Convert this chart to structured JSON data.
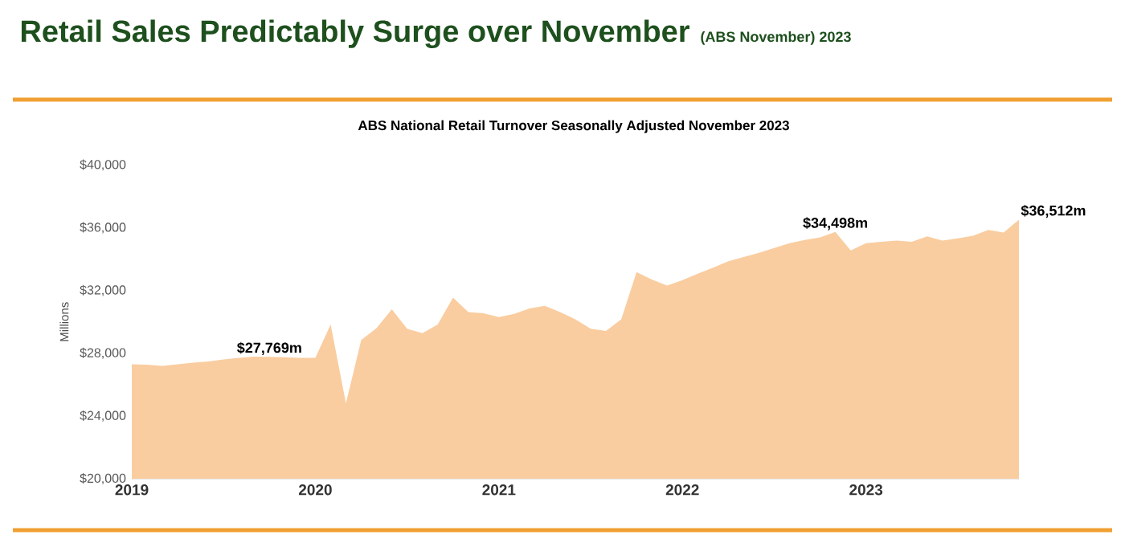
{
  "chart_data": {
    "type": "area",
    "title": "Retail Sales Predictably Surge over November",
    "subtitle": "ABS National Retail Turnover Seasonally Adjusted November 2023",
    "ylabel": "Millions",
    "annotations": [
      "(ABS November) 2023",
      {
        "text": "$27,769m",
        "x": "2019-10",
        "y": 27769
      },
      {
        "text": "$34,498m",
        "x": "2022-11",
        "y": 35730
      },
      {
        "text": "$36,512m",
        "x": "2023-11",
        "y": 36512
      }
    ],
    "x": [
      "2019-01",
      "2019-02",
      "2019-03",
      "2019-04",
      "2019-05",
      "2019-06",
      "2019-07",
      "2019-08",
      "2019-09",
      "2019-10",
      "2019-11",
      "2019-12",
      "2020-01",
      "2020-02",
      "2020-03",
      "2020-04",
      "2020-05",
      "2020-06",
      "2020-07",
      "2020-08",
      "2020-09",
      "2020-10",
      "2020-11",
      "2020-12",
      "2021-01",
      "2021-02",
      "2021-03",
      "2021-04",
      "2021-05",
      "2021-06",
      "2021-07",
      "2021-08",
      "2021-09",
      "2021-10",
      "2021-11",
      "2021-12",
      "2022-01",
      "2022-02",
      "2022-03",
      "2022-04",
      "2022-05",
      "2022-06",
      "2022-07",
      "2022-08",
      "2022-09",
      "2022-10",
      "2022-11",
      "2022-12",
      "2023-01",
      "2023-02",
      "2023-03",
      "2023-04",
      "2023-05",
      "2023-06",
      "2023-07",
      "2023-08",
      "2023-09",
      "2023-10",
      "2023-11"
    ],
    "values": [
      27300,
      27270,
      27200,
      27300,
      27400,
      27470,
      27610,
      27710,
      27780,
      27769,
      27750,
      27700,
      27700,
      29830,
      24810,
      28840,
      29600,
      30800,
      29560,
      29280,
      29830,
      31540,
      30620,
      30550,
      30310,
      30510,
      30850,
      31020,
      30620,
      30170,
      29560,
      29420,
      30170,
      33170,
      32700,
      32320,
      32660,
      33070,
      33450,
      33860,
      34130,
      34400,
      34710,
      35020,
      35220,
      35390,
      35730,
      34560,
      35010,
      35110,
      35180,
      35110,
      35450,
      35180,
      35320,
      35490,
      35860,
      35690,
      36512
    ],
    "color": "#f9cda0",
    "xlim": [
      "2019-01",
      "2023-11"
    ],
    "xticks": [
      {
        "value": "2019-01",
        "label": "2019"
      },
      {
        "value": "2020-01",
        "label": "2020"
      },
      {
        "value": "2021-01",
        "label": "2021"
      },
      {
        "value": "2022-01",
        "label": "2022"
      },
      {
        "value": "2023-01",
        "label": "2023"
      }
    ],
    "ylim": [
      20000,
      40000
    ],
    "yticks": [
      {
        "value": 20000,
        "label": "$20,000"
      },
      {
        "value": 24000,
        "label": "$24,000"
      },
      {
        "value": 28000,
        "label": "$28,000"
      },
      {
        "value": 32000,
        "label": "$32,000"
      },
      {
        "value": 36000,
        "label": "$36,000"
      },
      {
        "value": 40000,
        "label": "$40,000"
      }
    ]
  }
}
